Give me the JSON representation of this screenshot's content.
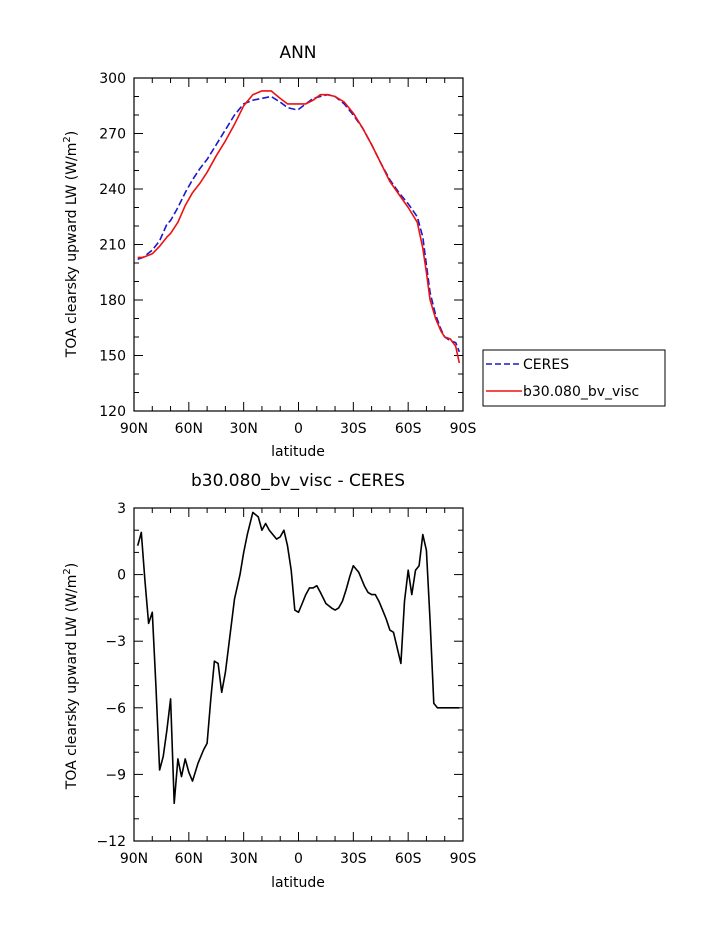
{
  "chart_data": [
    {
      "type": "line",
      "title": "ANN",
      "xlabel": "latitude",
      "ylabel": "TOA clearsky upward LW (W/m",
      "ylabel_sup": "2",
      "ylabel_end": ")",
      "xlim": [
        90,
        -90
      ],
      "ylim": [
        120,
        300
      ],
      "xticks": [
        {
          "v": 90,
          "label": "90N"
        },
        {
          "v": 60,
          "label": "60N"
        },
        {
          "v": 30,
          "label": "30N"
        },
        {
          "v": 0,
          "label": "0"
        },
        {
          "v": -30,
          "label": "30S"
        },
        {
          "v": -60,
          "label": "60S"
        },
        {
          "v": -90,
          "label": "90S"
        }
      ],
      "yticks": [
        120,
        150,
        180,
        210,
        240,
        270,
        300
      ],
      "legend_position": "right",
      "series": [
        {
          "name": "CERES",
          "color": "#1a1acc",
          "style": "dashed",
          "x": [
            88,
            85,
            80,
            76,
            72,
            70,
            66,
            62,
            58,
            54,
            50,
            45,
            40,
            35,
            30,
            25,
            20,
            15,
            10,
            6,
            2,
            0,
            -4,
            -8,
            -12,
            -16,
            -20,
            -25,
            -30,
            -35,
            -40,
            -45,
            -50,
            -55,
            -60,
            -65,
            -68,
            -70,
            -72,
            -75,
            -78,
            -80,
            -83,
            -86,
            -88
          ],
          "y": [
            202,
            203,
            207,
            212,
            221,
            223,
            230,
            238,
            245,
            251,
            256,
            264,
            272,
            280,
            286,
            288,
            289,
            290,
            287,
            284,
            283,
            283,
            286,
            289,
            290,
            291,
            290,
            286,
            280,
            273,
            264,
            254,
            245,
            238,
            232,
            225,
            214,
            199,
            184,
            172,
            164,
            160,
            158,
            157,
            152
          ]
        },
        {
          "name": "b30.080_bv_visc",
          "color": "#ee1111",
          "style": "solid",
          "x": [
            88,
            85,
            80,
            76,
            72,
            70,
            66,
            62,
            58,
            54,
            50,
            45,
            40,
            35,
            30,
            25,
            20,
            15,
            10,
            6,
            2,
            0,
            -4,
            -8,
            -12,
            -16,
            -20,
            -25,
            -30,
            -35,
            -40,
            -45,
            -50,
            -55,
            -60,
            -65,
            -68,
            -70,
            -72,
            -75,
            -78,
            -80,
            -83,
            -86,
            -88
          ],
          "y": [
            203,
            203,
            205,
            209,
            214,
            216,
            222,
            231,
            238,
            243,
            249,
            258,
            266,
            275,
            285,
            291,
            293,
            293,
            289,
            286,
            286,
            286,
            286,
            288,
            291,
            291,
            290,
            287,
            281,
            273,
            264,
            254,
            244,
            237,
            230,
            222,
            208,
            195,
            180,
            170,
            163,
            160,
            159,
            155,
            146
          ]
        }
      ]
    },
    {
      "type": "line",
      "title": "b30.080_bv_visc - CERES",
      "xlabel": "latitude",
      "ylabel": "TOA clearsky upward LW (W/m",
      "ylabel_sup": "2",
      "ylabel_end": ")",
      "xlim": [
        90,
        -90
      ],
      "ylim": [
        -12,
        3
      ],
      "xticks": [
        {
          "v": 90,
          "label": "90N"
        },
        {
          "v": 60,
          "label": "60N"
        },
        {
          "v": 30,
          "label": "30N"
        },
        {
          "v": 0,
          "label": "0"
        },
        {
          "v": -30,
          "label": "30S"
        },
        {
          "v": -60,
          "label": "60S"
        },
        {
          "v": -90,
          "label": "90S"
        }
      ],
      "yticks": [
        -12,
        -9,
        -6,
        -3,
        0,
        3
      ],
      "series": [
        {
          "color": "#000000",
          "style": "solid",
          "x": [
            88,
            86,
            84,
            82,
            80,
            78,
            76,
            74,
            72,
            70,
            68,
            66,
            64,
            62,
            60,
            58,
            55,
            52,
            50,
            48,
            46,
            44,
            42,
            40,
            38,
            35,
            32,
            30,
            28,
            25,
            22,
            20,
            18,
            16,
            14,
            12,
            10,
            8,
            6,
            4,
            2,
            0,
            -2,
            -4,
            -6,
            -8,
            -10,
            -12,
            -15,
            -18,
            -20,
            -22,
            -24,
            -26,
            -28,
            -30,
            -33,
            -36,
            -38,
            -40,
            -42,
            -44,
            -46,
            -48,
            -50,
            -52,
            -54,
            -56,
            -58,
            -60,
            -62,
            -64,
            -66,
            -68,
            -70,
            -72,
            -74,
            -76,
            -78,
            -80,
            -82,
            -84,
            -86,
            -88
          ],
          "y": [
            1.3,
            1.9,
            -0.3,
            -2.2,
            -1.7,
            -5.0,
            -8.8,
            -8.2,
            -7.0,
            -5.6,
            -10.3,
            -8.3,
            -9.1,
            -8.3,
            -8.9,
            -9.3,
            -8.5,
            -7.9,
            -7.6,
            -5.6,
            -3.9,
            -4.0,
            -5.3,
            -4.4,
            -3.1,
            -1.1,
            0.0,
            1.0,
            1.8,
            2.8,
            2.6,
            2.0,
            2.3,
            2.0,
            1.8,
            1.6,
            1.7,
            2.0,
            1.3,
            0.2,
            -1.6,
            -1.7,
            -1.3,
            -0.9,
            -0.6,
            -0.6,
            -0.5,
            -0.8,
            -1.3,
            -1.5,
            -1.6,
            -1.5,
            -1.2,
            -0.7,
            -0.1,
            0.4,
            0.1,
            -0.5,
            -0.8,
            -0.9,
            -0.9,
            -1.2,
            -1.6,
            -2.0,
            -2.5,
            -2.6,
            -3.3,
            -4.0,
            -1.2,
            0.2,
            -0.9,
            0.2,
            0.4,
            1.8,
            1.1,
            -2.1,
            -5.8,
            -6.0,
            -6.0,
            -6.0,
            -6.0,
            -6.0,
            -6.0,
            -6.0
          ]
        }
      ]
    }
  ]
}
